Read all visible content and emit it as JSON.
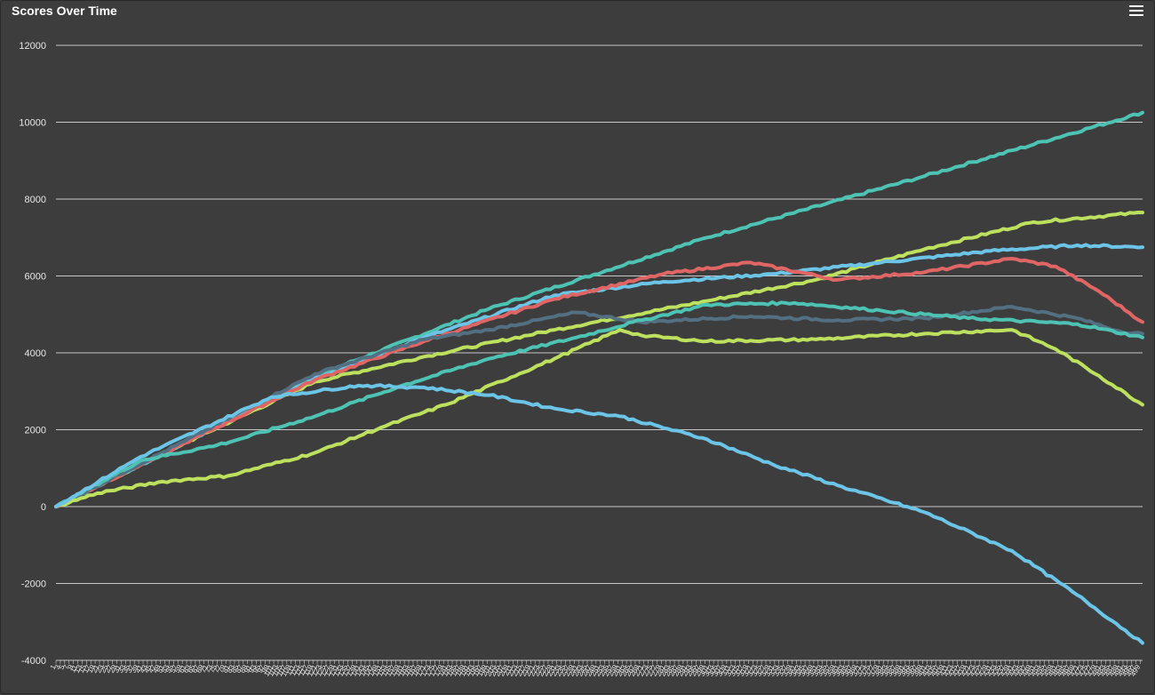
{
  "header": {
    "title": "Scores Over Time",
    "menu_icon": "hamburger-menu-icon"
  },
  "chart_data": {
    "type": "line",
    "title": "Scores Over Time",
    "xlabel": "",
    "ylabel": "",
    "ylim": [
      -4000,
      12000
    ],
    "y_ticks": [
      -4000,
      -2000,
      0,
      2000,
      4000,
      6000,
      8000,
      10000,
      12000
    ],
    "x_range": [
      1,
      500
    ],
    "x_tick_step": 2,
    "grid": true,
    "legend": "none",
    "series": [
      {
        "color": "#4ec3b3",
        "points": [
          [
            1,
            0
          ],
          [
            60,
            1650
          ],
          [
            120,
            3400
          ],
          [
            200,
            5150
          ],
          [
            300,
            7000
          ],
          [
            400,
            8600
          ],
          [
            500,
            10250
          ]
        ]
      },
      {
        "color": "#bde05e",
        "points": [
          [
            1,
            0
          ],
          [
            60,
            1650
          ],
          [
            120,
            3250
          ],
          [
            170,
            3900
          ],
          [
            230,
            4600
          ],
          [
            300,
            5350
          ],
          [
            350,
            5900
          ],
          [
            400,
            6700
          ],
          [
            450,
            7400
          ],
          [
            500,
            7650
          ]
        ]
      },
      {
        "color": "#6cc4e6",
        "points": [
          [
            1,
            0
          ],
          [
            60,
            1650
          ],
          [
            120,
            3350
          ],
          [
            170,
            4400
          ],
          [
            230,
            5500
          ],
          [
            280,
            5850
          ],
          [
            330,
            6050
          ],
          [
            380,
            6350
          ],
          [
            430,
            6650
          ],
          [
            470,
            6800
          ],
          [
            500,
            6750
          ]
        ]
      },
      {
        "color": "#e06666",
        "points": [
          [
            1,
            0
          ],
          [
            60,
            1650
          ],
          [
            120,
            3300
          ],
          [
            170,
            4300
          ],
          [
            230,
            5400
          ],
          [
            280,
            6050
          ],
          [
            320,
            6350
          ],
          [
            360,
            5900
          ],
          [
            400,
            6100
          ],
          [
            440,
            6450
          ],
          [
            460,
            6250
          ],
          [
            480,
            5600
          ],
          [
            500,
            4800
          ]
        ]
      },
      {
        "color": "#536f82",
        "points": [
          [
            1,
            0
          ],
          [
            60,
            1700
          ],
          [
            120,
            3450
          ],
          [
            170,
            4350
          ],
          [
            200,
            4600
          ],
          [
            240,
            5050
          ],
          [
            270,
            4800
          ],
          [
            320,
            4950
          ],
          [
            360,
            4850
          ],
          [
            400,
            4900
          ],
          [
            440,
            5200
          ],
          [
            470,
            4900
          ],
          [
            490,
            4550
          ],
          [
            500,
            4500
          ]
        ]
      },
      {
        "color": "#4ec3b3",
        "points": [
          [
            1,
            0
          ],
          [
            40,
            1200
          ],
          [
            75,
            1600
          ],
          [
            85,
            1750
          ],
          [
            120,
            2350
          ],
          [
            160,
            3150
          ],
          [
            200,
            3850
          ],
          [
            240,
            4400
          ],
          [
            270,
            4850
          ],
          [
            300,
            5250
          ],
          [
            340,
            5300
          ],
          [
            380,
            5100
          ],
          [
            420,
            4900
          ],
          [
            470,
            4750
          ],
          [
            500,
            4400
          ]
        ]
      },
      {
        "color": "#bde05e",
        "points": [
          [
            1,
            0
          ],
          [
            20,
            350
          ],
          [
            50,
            650
          ],
          [
            80,
            800
          ],
          [
            120,
            1400
          ],
          [
            150,
            2050
          ],
          [
            180,
            2650
          ],
          [
            230,
            3850
          ],
          [
            260,
            4600
          ],
          [
            270,
            4450
          ],
          [
            300,
            4300
          ],
          [
            350,
            4350
          ],
          [
            400,
            4500
          ],
          [
            440,
            4600
          ],
          [
            460,
            4100
          ],
          [
            480,
            3400
          ],
          [
            500,
            2650
          ]
        ]
      },
      {
        "color": "#6cc4e6",
        "points": [
          [
            1,
            0
          ],
          [
            40,
            1300
          ],
          [
            100,
            2850
          ],
          [
            140,
            3150
          ],
          [
            170,
            3100
          ],
          [
            200,
            2900
          ],
          [
            230,
            2550
          ],
          [
            260,
            2350
          ],
          [
            300,
            1750
          ],
          [
            330,
            1100
          ],
          [
            360,
            550
          ],
          [
            400,
            -150
          ],
          [
            440,
            -1150
          ],
          [
            470,
            -2300
          ],
          [
            500,
            -3550
          ]
        ]
      }
    ]
  }
}
